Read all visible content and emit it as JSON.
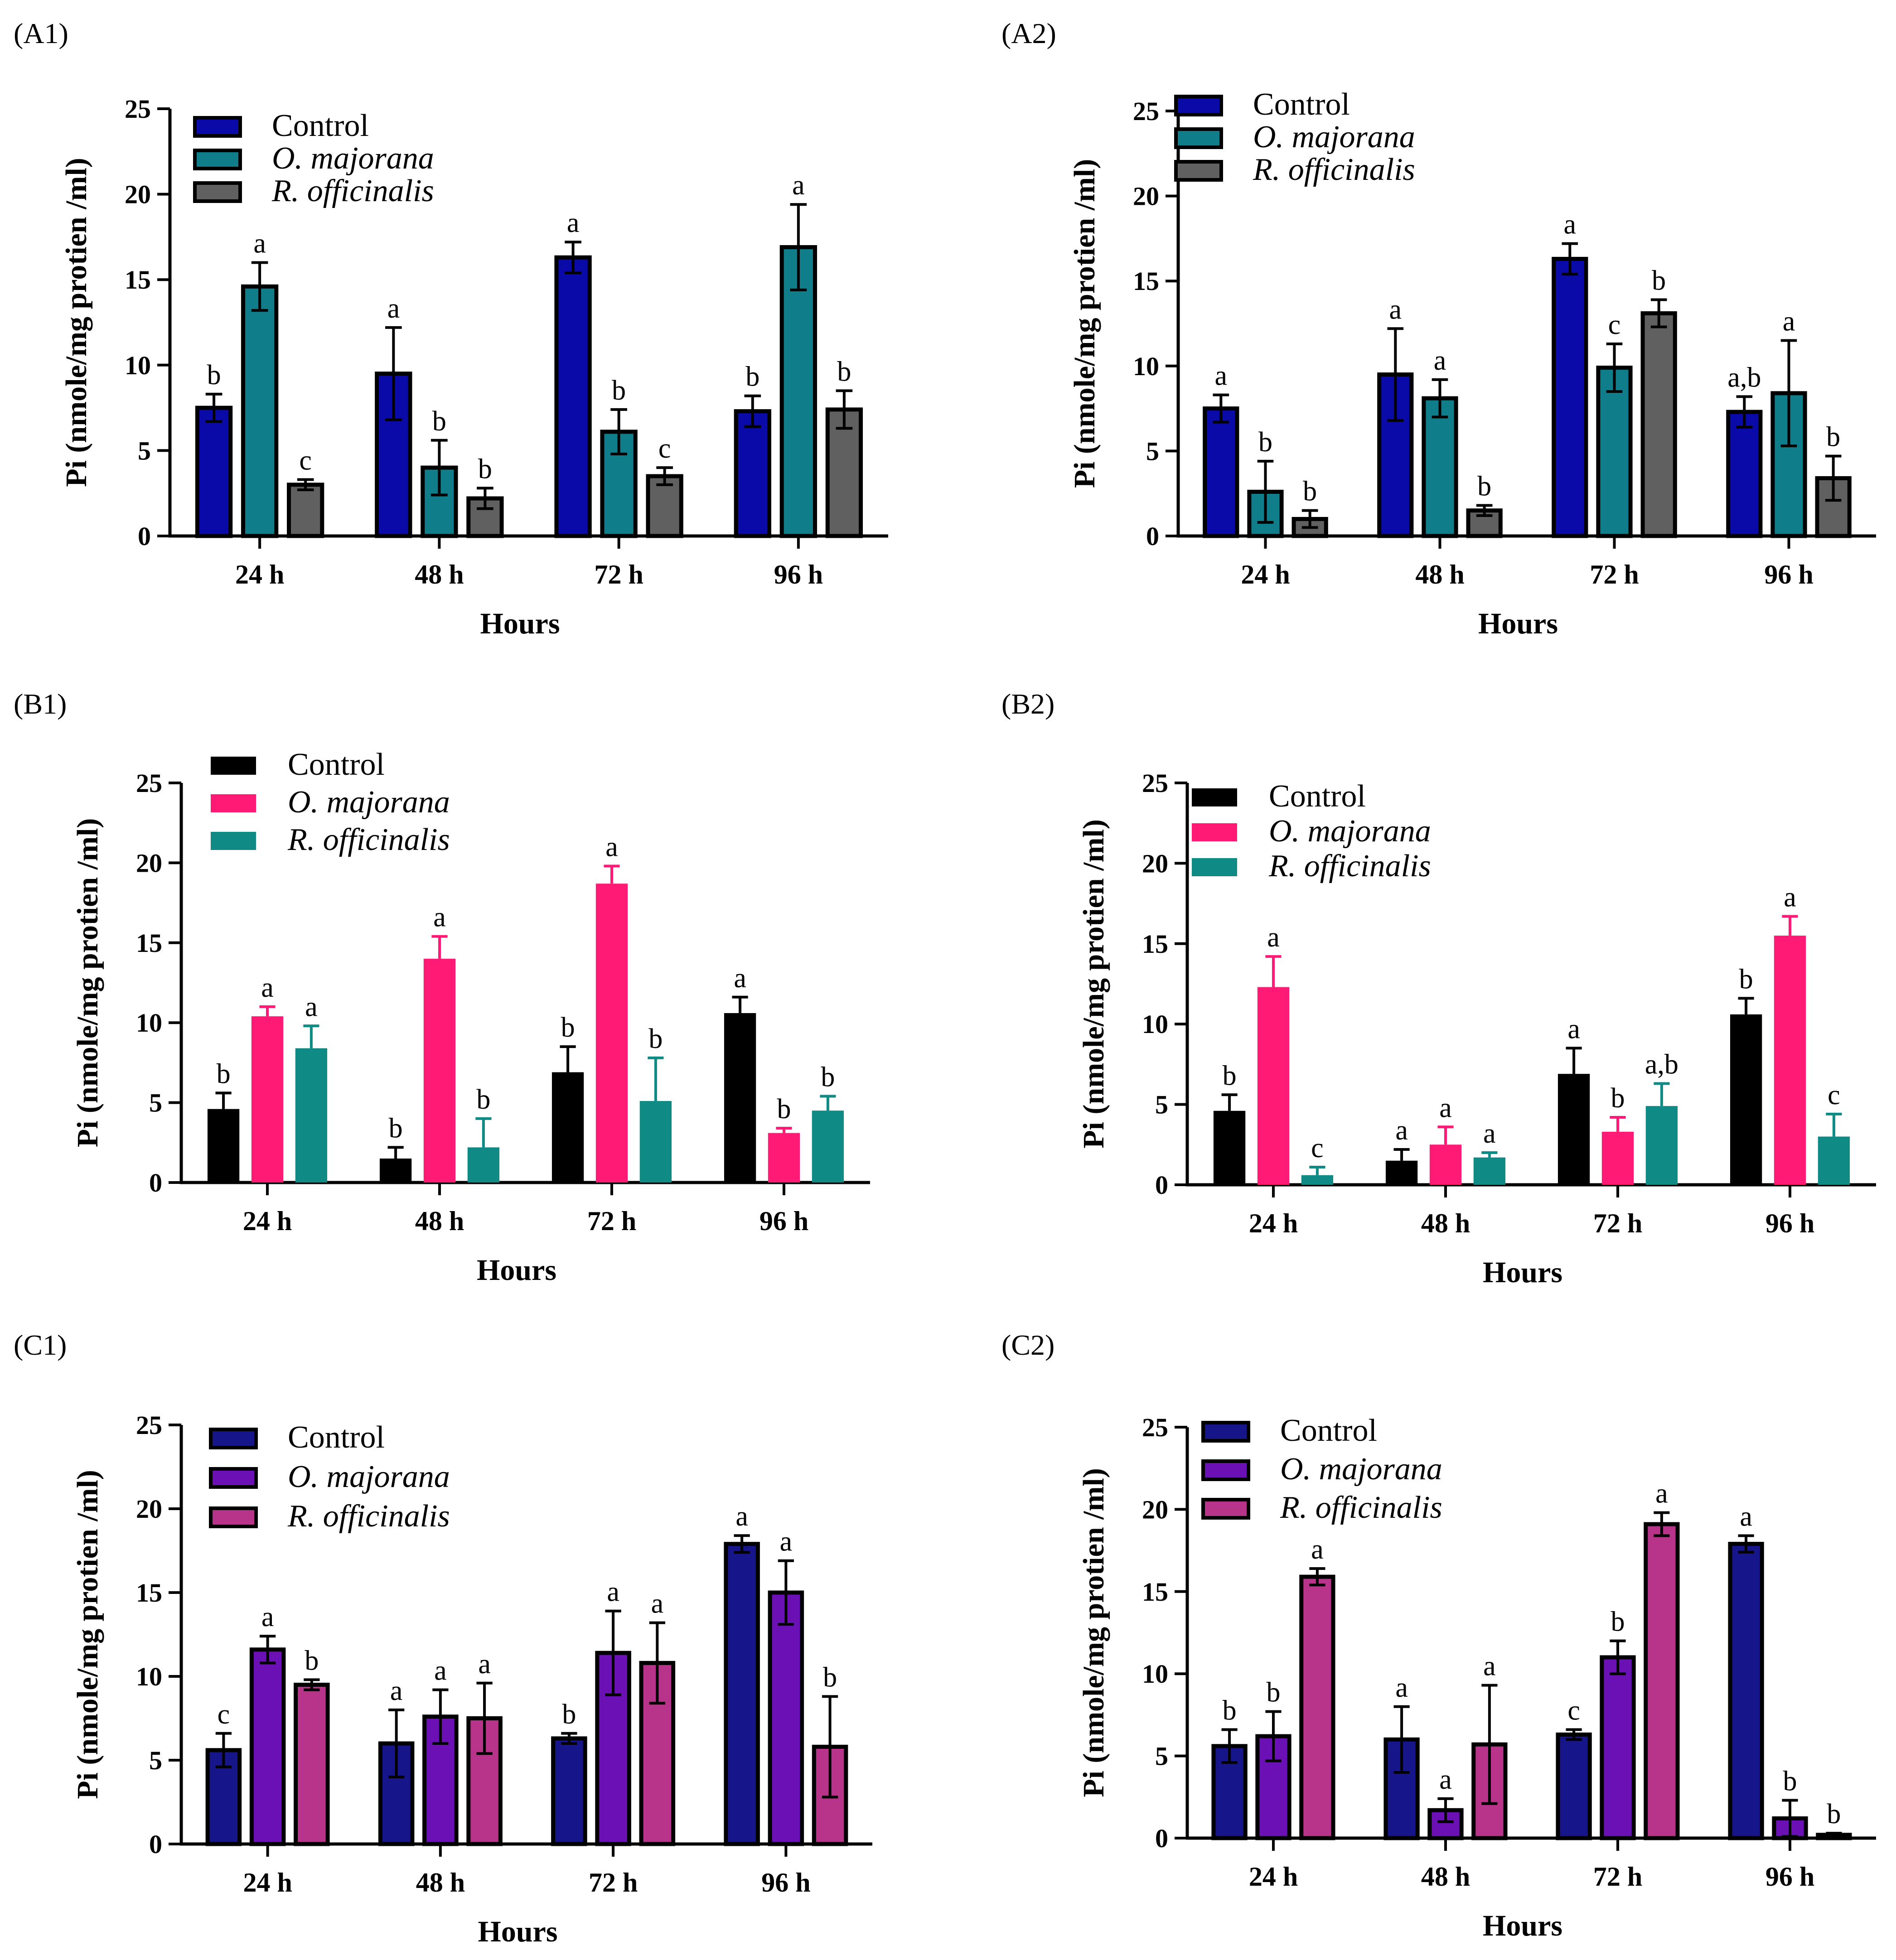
{
  "figure": {
    "panels": [
      {
        "label": "(A1)",
        "colors": [
          "#0a0aa8",
          "#0f7d8a",
          "#606060"
        ],
        "style": "outlined",
        "legend_pos": "top-left",
        "chart_data": {
          "type": "bar",
          "categories": [
            "24 h",
            "48 h",
            "72 h",
            "96 h"
          ],
          "series": [
            {
              "name": "Control",
              "values": [
                7.5,
                9.5,
                16.3,
                7.3
              ],
              "errors": [
                0.8,
                2.7,
                0.9,
                0.9
              ],
              "letters": [
                "b",
                "a",
                "a",
                "b"
              ]
            },
            {
              "name": "O. majorana",
              "values": [
                14.6,
                4.0,
                6.1,
                16.9
              ],
              "errors": [
                1.4,
                1.6,
                1.3,
                2.5
              ],
              "letters": [
                "a",
                "b",
                "b",
                "a"
              ]
            },
            {
              "name": "R. officinalis",
              "values": [
                3.0,
                2.2,
                3.5,
                7.4
              ],
              "errors": [
                0.3,
                0.6,
                0.5,
                1.1
              ],
              "letters": [
                "c",
                "b",
                "c",
                "b"
              ]
            }
          ],
          "xlabel": "Hours",
          "ylabel": "Pi (nmole/mg protien /ml)",
          "yticks": [
            "0",
            "5",
            "10",
            "15",
            "20",
            "25"
          ],
          "ylim": [
            0,
            25
          ]
        }
      },
      {
        "label": "(A2)",
        "colors": [
          "#0a0aa8",
          "#0f7d8a",
          "#606060"
        ],
        "style": "outlined",
        "legend_pos": "top-left",
        "chart_data": {
          "type": "bar",
          "categories": [
            "24 h",
            "48 h",
            "72 h",
            "96 h"
          ],
          "series": [
            {
              "name": "Control",
              "values": [
                7.5,
                9.5,
                16.3,
                7.3
              ],
              "errors": [
                0.8,
                2.7,
                0.9,
                0.9
              ],
              "letters": [
                "a",
                "a",
                "a",
                "a,b"
              ]
            },
            {
              "name": "O. majorana",
              "values": [
                2.6,
                8.1,
                9.9,
                8.4
              ],
              "errors": [
                1.8,
                1.1,
                1.4,
                3.1
              ],
              "letters": [
                "b",
                "a",
                "c",
                "a"
              ]
            },
            {
              "name": "R. officinalis",
              "values": [
                1.0,
                1.5,
                13.1,
                3.4
              ],
              "errors": [
                0.5,
                0.3,
                0.8,
                1.3
              ],
              "letters": [
                "b",
                "b",
                "b",
                "b"
              ]
            }
          ],
          "xlabel": "Hours",
          "ylabel": "Pi (nmole/mg protien /ml)",
          "yticks": [
            "0",
            "5",
            "10",
            "15",
            "20",
            "25"
          ],
          "ylim": [
            0,
            25
          ]
        }
      },
      {
        "label": "(B1)",
        "colors": [
          "#000000",
          "#ff1a75",
          "#108a85"
        ],
        "style": "solid",
        "legend_pos": "top-left",
        "chart_data": {
          "type": "bar",
          "categories": [
            "24 h",
            "48 h",
            "72 h",
            "96 h"
          ],
          "series": [
            {
              "name": "Control",
              "values": [
                4.6,
                1.5,
                6.9,
                10.6
              ],
              "errors": [
                1.0,
                0.7,
                1.6,
                1.0
              ],
              "letters": [
                "b",
                "b",
                "b",
                "a"
              ]
            },
            {
              "name": "O. majorana",
              "values": [
                10.4,
                14.0,
                18.7,
                3.1
              ],
              "errors": [
                0.6,
                1.4,
                1.1,
                0.3
              ],
              "letters": [
                "a",
                "a",
                "a",
                "b"
              ]
            },
            {
              "name": "R. officinalis",
              "values": [
                8.4,
                2.2,
                5.1,
                4.5
              ],
              "errors": [
                1.4,
                1.8,
                2.7,
                0.9
              ],
              "letters": [
                "a",
                "b",
                "b",
                "b"
              ]
            }
          ],
          "xlabel": "Hours",
          "ylabel": "Pi (nmole/mg protien /ml)",
          "yticks": [
            "0",
            "5",
            "10",
            "15",
            "20",
            "25"
          ],
          "ylim": [
            0,
            25
          ]
        }
      },
      {
        "label": "(B2)",
        "colors": [
          "#000000",
          "#ff1a75",
          "#108a85"
        ],
        "style": "solid",
        "legend_pos": "top-left",
        "chart_data": {
          "type": "bar",
          "categories": [
            "24 h",
            "48 h",
            "72 h",
            "96 h"
          ],
          "series": [
            {
              "name": "Control",
              "values": [
                4.6,
                1.5,
                6.9,
                10.6
              ],
              "errors": [
                1.0,
                0.7,
                1.6,
                1.0
              ],
              "letters": [
                "b",
                "a",
                "a",
                "b"
              ]
            },
            {
              "name": "O. majorana",
              "values": [
                12.3,
                2.5,
                3.3,
                15.5
              ],
              "errors": [
                1.9,
                1.1,
                0.9,
                1.2
              ],
              "letters": [
                "a",
                "a",
                "b",
                "a"
              ]
            },
            {
              "name": "R. officinalis",
              "values": [
                0.6,
                1.7,
                4.9,
                3.0
              ],
              "errors": [
                0.5,
                0.3,
                1.4,
                1.4
              ],
              "letters": [
                "c",
                "a",
                "a,b",
                "c"
              ]
            }
          ],
          "xlabel": "Hours",
          "ylabel": "Pi (nmole/mg protien /ml)",
          "yticks": [
            "0",
            "5",
            "10",
            "15",
            "20",
            "25"
          ],
          "ylim": [
            0,
            25
          ]
        }
      },
      {
        "label": "(C1)",
        "colors": [
          "#16168a",
          "#6a10b5",
          "#b8338a"
        ],
        "style": "outlined",
        "legend_pos": "top-left",
        "chart_data": {
          "type": "bar",
          "categories": [
            "24 h",
            "48 h",
            "72 h",
            "96 h"
          ],
          "series": [
            {
              "name": "Control",
              "values": [
                5.6,
                6.0,
                6.3,
                17.9
              ],
              "errors": [
                1.0,
                2.0,
                0.3,
                0.5
              ],
              "letters": [
                "c",
                "a",
                "b",
                "a"
              ]
            },
            {
              "name": "O. majorana",
              "values": [
                11.6,
                7.6,
                11.4,
                15.0
              ],
              "errors": [
                0.8,
                1.6,
                2.5,
                1.9
              ],
              "letters": [
                "a",
                "a",
                "a",
                "a"
              ]
            },
            {
              "name": "R. officinalis",
              "values": [
                9.5,
                7.5,
                10.8,
                5.8
              ],
              "errors": [
                0.3,
                2.1,
                2.4,
                3.0
              ],
              "letters": [
                "b",
                "a",
                "a",
                "b"
              ]
            }
          ],
          "xlabel": "Hours",
          "ylabel": "Pi (nmole/mg protien /ml)",
          "yticks": [
            "0",
            "5",
            "10",
            "15",
            "20",
            "25"
          ],
          "ylim": [
            0,
            25
          ]
        }
      },
      {
        "label": "(C2)",
        "colors": [
          "#16168a",
          "#6a10b5",
          "#b8338a"
        ],
        "style": "outlined",
        "legend_pos": "top-left",
        "chart_data": {
          "type": "bar",
          "categories": [
            "24 h",
            "48 h",
            "72 h",
            "96 h"
          ],
          "series": [
            {
              "name": "Control",
              "values": [
                5.6,
                6.0,
                6.3,
                17.9
              ],
              "errors": [
                1.0,
                2.0,
                0.3,
                0.5
              ],
              "letters": [
                "b",
                "a",
                "c",
                "a"
              ]
            },
            {
              "name": "O. majorana",
              "values": [
                6.2,
                1.7,
                11.0,
                1.2
              ],
              "errors": [
                1.5,
                0.7,
                1.0,
                1.1
              ],
              "letters": [
                "b",
                "a",
                "b",
                "b"
              ]
            },
            {
              "name": "R. officinalis",
              "values": [
                15.9,
                5.7,
                19.1,
                0.2
              ],
              "errors": [
                0.5,
                3.6,
                0.7,
                0.1
              ],
              "letters": [
                "a",
                "a",
                "a",
                "b"
              ]
            }
          ],
          "xlabel": "Hours",
          "ylabel": "Pi (nmole/mg protien /ml)",
          "yticks": [
            "0",
            "5",
            "10",
            "15",
            "20",
            "25"
          ],
          "ylim": [
            0,
            25
          ]
        }
      }
    ]
  }
}
